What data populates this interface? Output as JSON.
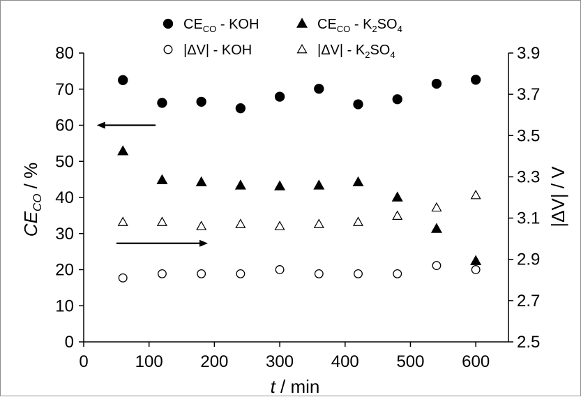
{
  "chart_data": {
    "type": "scatter",
    "x_axis": {
      "label_italic": "t",
      "label_rest": " / min",
      "range": [
        0,
        650
      ],
      "ticks": [
        0,
        100,
        200,
        300,
        400,
        500,
        600
      ],
      "tick_labels": [
        "0",
        "100",
        "200",
        "300",
        "400",
        "500",
        "600"
      ]
    },
    "y_axis_left": {
      "label_main": "CE",
      "label_sub": "CO",
      "label_rest": " / %",
      "range": [
        0,
        80
      ],
      "ticks": [
        0,
        10,
        20,
        30,
        40,
        50,
        60,
        70,
        80
      ],
      "tick_labels": [
        "0",
        "10",
        "20",
        "30",
        "40",
        "50",
        "60",
        "70",
        "80"
      ]
    },
    "y_axis_right": {
      "label": "|ΔV| / V",
      "range": [
        2.5,
        3.9
      ],
      "ticks": [
        2.5,
        2.7,
        2.9,
        3.1,
        3.3,
        3.5,
        3.7,
        3.9
      ],
      "tick_labels": [
        "2.5",
        "2.7",
        "2.9",
        "3.1",
        "3.3",
        "3.5",
        "3.7",
        "3.9"
      ]
    },
    "legend_placement": "top",
    "legend": [
      {
        "main": "CE",
        "sub": "CO",
        "tail": " - KOH",
        "marker": "filled-circle"
      },
      {
        "main": "CE",
        "sub": "CO",
        "tail": " - K",
        "sub2": "2",
        "tail2": "SO",
        "sub3": "4",
        "marker": "filled-triangle"
      },
      {
        "main": "|ΔV| - KOH",
        "marker": "open-circle"
      },
      {
        "main": "|ΔV| - K",
        "sub2": "2",
        "tail2": "SO",
        "sub3": "4",
        "marker": "open-triangle"
      }
    ],
    "series": [
      {
        "axis": "left",
        "marker": "filled-circle",
        "x": [
          60,
          120,
          180,
          240,
          300,
          360,
          420,
          480,
          540,
          600
        ],
        "y": [
          72.5,
          66.2,
          66.5,
          64.7,
          67.9,
          70.1,
          65.8,
          67.2,
          71.5,
          72.6
        ]
      },
      {
        "axis": "left",
        "marker": "filled-triangle",
        "x": [
          60,
          120,
          180,
          240,
          300,
          360,
          420,
          480,
          540,
          600
        ],
        "y": [
          52.8,
          44.8,
          44.2,
          43.3,
          43.1,
          43.3,
          44.2,
          40.0,
          31.3,
          22.4
        ]
      },
      {
        "axis": "right",
        "marker": "open-circle",
        "x": [
          60,
          120,
          180,
          240,
          300,
          360,
          420,
          480,
          540,
          600
        ],
        "y": [
          2.81,
          2.83,
          2.83,
          2.83,
          2.85,
          2.83,
          2.83,
          2.83,
          2.87,
          2.85
        ]
      },
      {
        "axis": "right",
        "marker": "open-triangle",
        "x": [
          60,
          120,
          180,
          240,
          300,
          360,
          420,
          480,
          540,
          600
        ],
        "y": [
          3.08,
          3.08,
          3.06,
          3.07,
          3.06,
          3.07,
          3.08,
          3.11,
          3.15,
          3.21
        ]
      }
    ],
    "annotations": [
      {
        "type": "arrow",
        "direction": "left",
        "axis": "left",
        "y": 60,
        "x_from": 110,
        "x_to": 20
      },
      {
        "type": "arrow",
        "direction": "right",
        "axis": "left",
        "y": 27.3,
        "x_from": 50,
        "x_to": 190
      }
    ],
    "grid": false
  }
}
